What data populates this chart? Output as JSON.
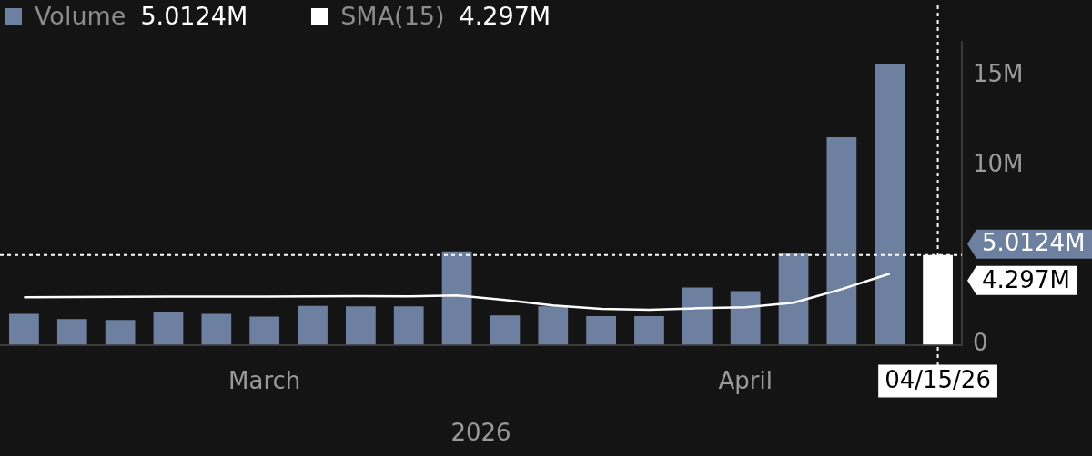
{
  "chart_data": {
    "type": "bar",
    "xlabel": "2026",
    "categories": [
      null,
      null,
      null,
      null,
      null,
      "March",
      null,
      null,
      null,
      null,
      null,
      null,
      null,
      null,
      null,
      "April",
      null,
      null,
      null,
      "04/15/26"
    ],
    "series": [
      {
        "name": "Volume",
        "color": "#6e80a0",
        "colors": [
          "#6e80a0",
          "#6e80a0",
          "#6e80a0",
          "#6e80a0",
          "#6e80a0",
          "#6e80a0",
          "#6e80a0",
          "#6e80a0",
          "#6e80a0",
          "#6e80a0",
          "#6e80a0",
          "#6e80a0",
          "#6e80a0",
          "#6e80a0",
          "#6e80a0",
          "#6e80a0",
          "#6e80a0",
          "#6e80a0",
          "#6e80a0",
          "#ffffff"
        ],
        "values": [
          1.73,
          1.44,
          1.38,
          1.86,
          1.73,
          1.58,
          2.17,
          2.14,
          2.14,
          5.21,
          1.64,
          2.14,
          1.6,
          1.6,
          3.2,
          3.0,
          5.15,
          11.58,
          15.66,
          5.0124
        ]
      },
      {
        "name": "SMA(15)",
        "type": "line",
        "color": "#ffffff",
        "values": [
          2.65,
          2.67,
          2.68,
          2.69,
          2.69,
          2.69,
          2.7,
          2.72,
          2.7,
          2.75,
          2.5,
          2.2,
          2.0,
          1.95,
          2.04,
          2.1,
          2.35,
          3.1,
          3.97,
          null
        ]
      }
    ],
    "ylim": [
      0,
      16.9
    ],
    "yticks": [
      {
        "value": 0,
        "label": "0"
      },
      {
        "value": 10,
        "label": "10M"
      },
      {
        "value": 15,
        "label": "15M"
      }
    ],
    "grid": false,
    "legend": "top left",
    "marker": "none",
    "ref_lines": [
      {
        "axis": "y",
        "value": 5.0124,
        "label": "5.0124M",
        "color": "#ffffff",
        "line_style": "dotted"
      },
      {
        "axis": "x",
        "value": "04/15/26",
        "color": "#ffffff",
        "line_style": "dotted"
      }
    ],
    "annotations": [
      {
        "text": "4.297M",
        "x": "04/15/26",
        "y": 4.297
      }
    ]
  }
}
